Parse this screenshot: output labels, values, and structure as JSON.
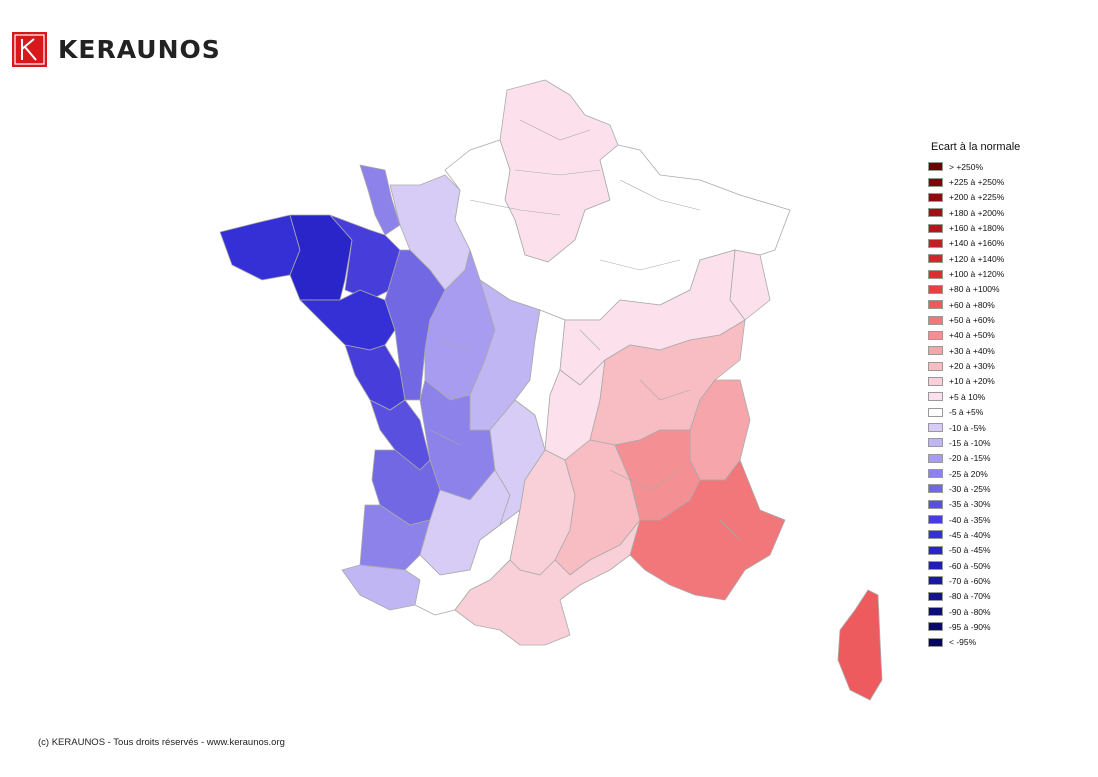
{
  "logo": {
    "brand": "KERAUNOS",
    "icon": "keraunos-k-icon",
    "color": "#d7191c"
  },
  "legend": {
    "title": "Ecart à la normale",
    "items": [
      {
        "label": "> +250%",
        "color": "#6b0000"
      },
      {
        "label": "+225 à +250%",
        "color": "#7a0607"
      },
      {
        "label": "+200 à +225%",
        "color": "#8b0c0e"
      },
      {
        "label": "+180 à +200%",
        "color": "#9e1215"
      },
      {
        "label": "+160 à +180%",
        "color": "#b1181c"
      },
      {
        "label": "+140 à +160%",
        "color": "#c21e23"
      },
      {
        "label": "+120 à +140%",
        "color": "#d3252a"
      },
      {
        "label": "+100 à +120%",
        "color": "#e02d32"
      },
      {
        "label": "+80 à +100%",
        "color": "#e8403f"
      },
      {
        "label": "+60 à +80%",
        "color": "#ee5b5e"
      },
      {
        "label": "+50 à +60%",
        "color": "#f2777b"
      },
      {
        "label": "+40 à +50%",
        "color": "#f48f94"
      },
      {
        "label": "+30 à +40%",
        "color": "#f6a6ab"
      },
      {
        "label": "+20 à +30%",
        "color": "#f8bcc3"
      },
      {
        "label": "+10 à +20%",
        "color": "#fad0d8"
      },
      {
        "label": "+5 à 10%",
        "color": "#fce1ec"
      },
      {
        "label": "-5 à +5%",
        "color": "#ffffff"
      },
      {
        "label": "-10 à -5%",
        "color": "#d6ccf6"
      },
      {
        "label": "-15 à -10%",
        "color": "#c0b6f3"
      },
      {
        "label": "-20 à -15%",
        "color": "#a79cef"
      },
      {
        "label": "-25 à 20%",
        "color": "#8d82ea"
      },
      {
        "label": "-30 à -25%",
        "color": "#7268e4"
      },
      {
        "label": "-35 à -30%",
        "color": "#5a50e0"
      },
      {
        "label": "-40 à -35%",
        "color": "#463ddb"
      },
      {
        "label": "-45 à -40%",
        "color": "#3530d6"
      },
      {
        "label": "-50 à -45%",
        "color": "#2a25c8"
      },
      {
        "label": "-60 à -50%",
        "color": "#211eb5"
      },
      {
        "label": "-70 à -60%",
        "color": "#1a17a0"
      },
      {
        "label": "-80 à -70%",
        "color": "#14128c"
      },
      {
        "label": "-90 à -80%",
        "color": "#0e0d78"
      },
      {
        "label": "-95 à -90%",
        "color": "#0a0966"
      },
      {
        "label": "< -95%",
        "color": "#060656"
      }
    ]
  },
  "map_regions": [
    {
      "name": "north",
      "color": "#fce1ec"
    },
    {
      "name": "north-east",
      "color": "#ffffff"
    },
    {
      "name": "alsace",
      "color": "#fce1ec"
    },
    {
      "name": "normandy",
      "color": "#d6ccf6"
    },
    {
      "name": "cotentin",
      "color": "#8d82ea"
    },
    {
      "name": "brittany-west",
      "color": "#3530d6"
    },
    {
      "name": "brittany-center",
      "color": "#2a25c8"
    },
    {
      "name": "brittany-east",
      "color": "#463ddb"
    },
    {
      "name": "loire-atlantique",
      "color": "#3530d6"
    },
    {
      "name": "vendee",
      "color": "#463ddb"
    },
    {
      "name": "charente-coast",
      "color": "#5a50e0"
    },
    {
      "name": "pays-de-loire-east",
      "color": "#7268e4"
    },
    {
      "name": "centre-west",
      "color": "#a79cef"
    },
    {
      "name": "centre",
      "color": "#c0b6f3"
    },
    {
      "name": "limousin",
      "color": "#8d82ea"
    },
    {
      "name": "gironde",
      "color": "#7268e4"
    },
    {
      "name": "landes",
      "color": "#8d82ea"
    },
    {
      "name": "pyrenees-atlantiques",
      "color": "#c0b6f3"
    },
    {
      "name": "dordogne-lot",
      "color": "#d6ccf6"
    },
    {
      "name": "auvergne-west",
      "color": "#d6ccf6"
    },
    {
      "name": "central-white",
      "color": "#ffffff"
    },
    {
      "name": "southwest-white",
      "color": "#ffffff"
    },
    {
      "name": "burgundy",
      "color": "#fce1ec"
    },
    {
      "name": "auvergne-east",
      "color": "#fce1ec"
    },
    {
      "name": "rhone-alpes",
      "color": "#f8bcc3"
    },
    {
      "name": "alps",
      "color": "#f6a6ab"
    },
    {
      "name": "occitanie",
      "color": "#fad0d8"
    },
    {
      "name": "gard-herault",
      "color": "#f8bcc3"
    },
    {
      "name": "provence",
      "color": "#f48f94"
    },
    {
      "name": "var-maritime",
      "color": "#f2777b"
    },
    {
      "name": "corsica",
      "color": "#ee5b5e"
    }
  ],
  "footer": {
    "text": "(c) KERAUNOS - Tous droits réservés - www.keraunos.org"
  }
}
